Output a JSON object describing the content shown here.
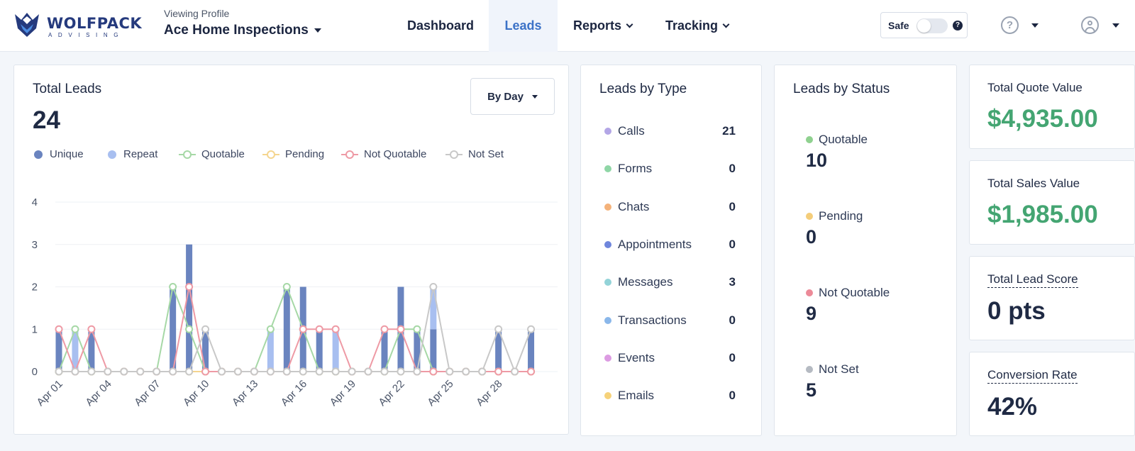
{
  "brand": {
    "name": "WOLFPACK",
    "tagline": "ADVISING",
    "colors": {
      "navy": "#253a7d",
      "accent": "#3c72c7",
      "green": "#44a572"
    }
  },
  "profile": {
    "label": "Viewing Profile",
    "name": "Ace Home Inspections"
  },
  "nav": [
    {
      "label": "Dashboard",
      "active": false,
      "dropdown": false
    },
    {
      "label": "Leads",
      "active": true,
      "dropdown": false
    },
    {
      "label": "Reports",
      "active": false,
      "dropdown": true
    },
    {
      "label": "Tracking",
      "active": false,
      "dropdown": true
    }
  ],
  "safe_toggle": {
    "label": "Safe",
    "on": false
  },
  "header_icons": [
    "help-icon",
    "user-icon"
  ],
  "total_leads": {
    "title": "Total Leads",
    "value": "24",
    "period_select": "By Day",
    "legend": [
      {
        "name": "Unique",
        "color": "#6a84bf",
        "style": "dot"
      },
      {
        "name": "Repeat",
        "color": "#a8bff0",
        "style": "dot"
      },
      {
        "name": "Quotable",
        "color": "#a6d8a6",
        "style": "ring"
      },
      {
        "name": "Pending",
        "color": "#f5d58f",
        "style": "ring"
      },
      {
        "name": "Not Quotable",
        "color": "#ee9aa5",
        "style": "ring"
      },
      {
        "name": "Not Set",
        "color": "#c8c8c8",
        "style": "ring"
      }
    ]
  },
  "chart_data": {
    "type": "bar",
    "x": [
      "Apr 01",
      "Apr 02",
      "Apr 03",
      "Apr 04",
      "Apr 05",
      "Apr 06",
      "Apr 07",
      "Apr 08",
      "Apr 09",
      "Apr 10",
      "Apr 11",
      "Apr 12",
      "Apr 13",
      "Apr 14",
      "Apr 15",
      "Apr 16",
      "Apr 17",
      "Apr 18",
      "Apr 19",
      "Apr 20",
      "Apr 21",
      "Apr 22",
      "Apr 23",
      "Apr 24",
      "Apr 25",
      "Apr 26",
      "Apr 27",
      "Apr 28",
      "Apr 29",
      "Apr 30"
    ],
    "tick_labels": [
      "Apr 01",
      "Apr 04",
      "Apr 07",
      "Apr 10",
      "Apr 13",
      "Apr 16",
      "Apr 19",
      "Apr 22",
      "Apr 25",
      "Apr 28"
    ],
    "ylim": [
      0,
      4
    ],
    "yticks": [
      0,
      1,
      2,
      3,
      4
    ],
    "grid": true,
    "series": [
      {
        "name": "Unique",
        "kind": "bar",
        "values": [
          1,
          0,
          1,
          0,
          0,
          0,
          0,
          2,
          3,
          1,
          0,
          0,
          0,
          0,
          2,
          2,
          1,
          0,
          0,
          0,
          1,
          2,
          1,
          1,
          0,
          0,
          0,
          1,
          0,
          1
        ]
      },
      {
        "name": "Repeat",
        "kind": "bar",
        "values": [
          0,
          1,
          0,
          0,
          0,
          0,
          0,
          0,
          0,
          0,
          0,
          0,
          0,
          1,
          0,
          0,
          0,
          1,
          0,
          0,
          0,
          0,
          0,
          1,
          0,
          0,
          0,
          0,
          0,
          0
        ]
      },
      {
        "name": "Quotable",
        "kind": "line",
        "values": [
          0,
          1,
          0,
          0,
          0,
          0,
          0,
          2,
          1,
          0,
          0,
          0,
          0,
          1,
          2,
          1,
          0,
          0,
          0,
          0,
          0,
          1,
          1,
          0,
          0,
          0,
          0,
          0,
          0,
          0
        ]
      },
      {
        "name": "Pending",
        "kind": "line",
        "values": [
          0,
          0,
          0,
          0,
          0,
          0,
          0,
          0,
          0,
          0,
          0,
          0,
          0,
          0,
          0,
          0,
          0,
          0,
          0,
          0,
          0,
          0,
          0,
          0,
          0,
          0,
          0,
          0,
          0,
          0
        ]
      },
      {
        "name": "Not Quotable",
        "kind": "line",
        "values": [
          1,
          0,
          1,
          0,
          0,
          0,
          0,
          0,
          2,
          0,
          0,
          0,
          0,
          0,
          0,
          1,
          1,
          1,
          0,
          0,
          1,
          1,
          0,
          0,
          0,
          0,
          0,
          0,
          0,
          0
        ]
      },
      {
        "name": "Not Set",
        "kind": "line",
        "values": [
          0,
          0,
          0,
          0,
          0,
          0,
          0,
          0,
          0,
          1,
          0,
          0,
          0,
          0,
          0,
          0,
          0,
          0,
          0,
          0,
          0,
          0,
          0,
          2,
          0,
          0,
          0,
          1,
          0,
          1
        ]
      }
    ]
  },
  "leads_by_type": {
    "title": "Leads by Type",
    "items": [
      {
        "label": "Calls",
        "value": "21",
        "color": "#b3a6e6"
      },
      {
        "label": "Forms",
        "value": "0",
        "color": "#8fd6a6"
      },
      {
        "label": "Chats",
        "value": "0",
        "color": "#f4b27a"
      },
      {
        "label": "Appointments",
        "value": "0",
        "color": "#6f86dc"
      },
      {
        "label": "Messages",
        "value": "3",
        "color": "#93d3d8"
      },
      {
        "label": "Transactions",
        "value": "0",
        "color": "#8ab7ea"
      },
      {
        "label": "Events",
        "value": "0",
        "color": "#dc9be2"
      },
      {
        "label": "Emails",
        "value": "0",
        "color": "#f6d27a"
      }
    ]
  },
  "leads_by_status": {
    "title": "Leads by Status",
    "items": [
      {
        "label": "Quotable",
        "value": "10",
        "color": "#8fd18f"
      },
      {
        "label": "Pending",
        "value": "0",
        "color": "#f4cd7a"
      },
      {
        "label": "Not Quotable",
        "value": "9",
        "color": "#ec8a98"
      },
      {
        "label": "Not Set",
        "value": "5",
        "color": "#b5bac2"
      }
    ]
  },
  "kpis": [
    {
      "title": "Total Quote Value",
      "value": "$4,935.00",
      "color": "#44a572",
      "dashed": false
    },
    {
      "title": "Total Sales Value",
      "value": "$1,985.00",
      "color": "#44a572",
      "dashed": false
    },
    {
      "title": "Total Lead Score",
      "value": "0 pts",
      "color": "#1f2a44",
      "dashed": true
    },
    {
      "title": "Conversion Rate",
      "value": "42%",
      "color": "#1f2a44",
      "dashed": true
    }
  ]
}
